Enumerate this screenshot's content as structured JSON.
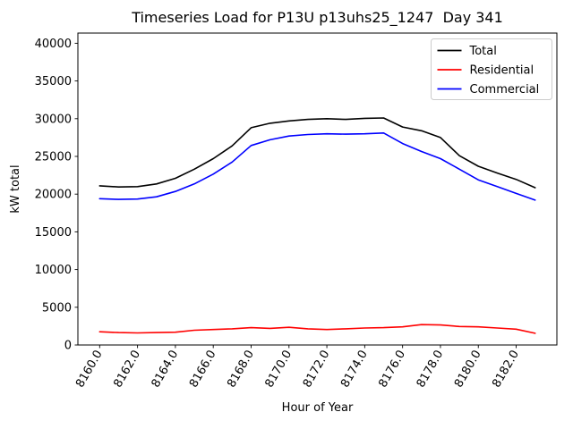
{
  "figure": {
    "title": "Timeseries Load for P13U p13uhs25_1247  Day 341"
  },
  "chart_data": {
    "type": "line",
    "title": "Timeseries Load for P13U p13uhs25_1247  Day 341",
    "xlabel": "Hour of Year",
    "ylabel": "kW total",
    "x": [
      8160,
      8161,
      8162,
      8163,
      8164,
      8165,
      8166,
      8167,
      8168,
      8169,
      8170,
      8171,
      8172,
      8173,
      8174,
      8175,
      8176,
      8177,
      8178,
      8179,
      8180,
      8181,
      8182,
      8183
    ],
    "series": [
      {
        "name": "Total",
        "color": "#000000",
        "values": [
          21100,
          20950,
          21000,
          21350,
          22100,
          23300,
          24700,
          26400,
          28800,
          29400,
          29700,
          29900,
          30000,
          29900,
          30050,
          30100,
          28900,
          28400,
          27500,
          25100,
          23700,
          22800,
          21950,
          20850
        ]
      },
      {
        "name": "Residential",
        "color": "#ff0000",
        "values": [
          1750,
          1650,
          1600,
          1650,
          1700,
          1950,
          2050,
          2150,
          2300,
          2200,
          2350,
          2150,
          2050,
          2150,
          2250,
          2300,
          2400,
          2700,
          2650,
          2450,
          2400,
          2250,
          2100,
          1550
        ]
      },
      {
        "name": "Commercial",
        "color": "#0000ff",
        "values": [
          19400,
          19300,
          19350,
          19650,
          20350,
          21350,
          22650,
          24250,
          26450,
          27200,
          27700,
          27900,
          28000,
          27950,
          28000,
          28100,
          26700,
          25650,
          24700,
          23300,
          21900,
          21000,
          20100,
          19200
        ]
      }
    ],
    "xlim": [
      8158.85,
      8184.15
    ],
    "ylim": [
      0,
      41350
    ],
    "xticks": {
      "values": [
        8160,
        8162,
        8164,
        8166,
        8168,
        8170,
        8172,
        8174,
        8176,
        8178,
        8180,
        8182
      ],
      "labels": [
        "8160.0",
        "8162.0",
        "8164.0",
        "8166.0",
        "8168.0",
        "8170.0",
        "8172.0",
        "8174.0",
        "8176.0",
        "8178.0",
        "8180.0",
        "8182.0"
      ],
      "rotation": 60
    },
    "yticks": {
      "values": [
        0,
        5000,
        10000,
        15000,
        20000,
        25000,
        30000,
        35000,
        40000
      ],
      "labels": [
        "0",
        "5000",
        "10000",
        "15000",
        "20000",
        "25000",
        "30000",
        "35000",
        "40000"
      ]
    },
    "grid": false,
    "legend": {
      "position": "upper right",
      "entries": [
        "Total",
        "Residential",
        "Commercial"
      ]
    }
  }
}
